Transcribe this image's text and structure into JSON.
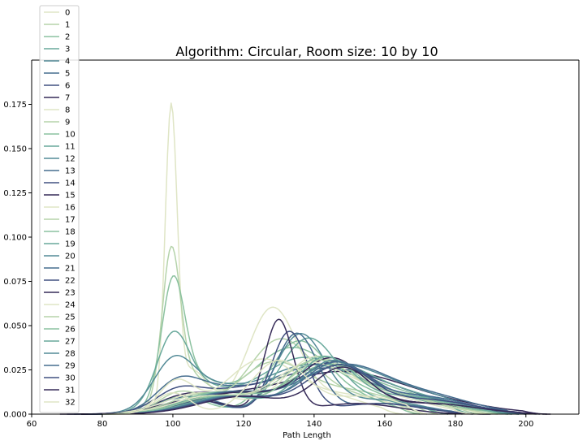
{
  "chart_data": {
    "type": "line",
    "title": "Algorithm: Circular, Room size: 10 by 10",
    "xlabel": "Path Length",
    "ylabel": "",
    "xlim": [
      60,
      215
    ],
    "ylim": [
      0,
      0.2
    ],
    "xticks": [
      "60",
      "80",
      "100",
      "120",
      "140",
      "160",
      "180",
      "200"
    ],
    "yticks": [
      "0.000",
      "0.025",
      "0.050",
      "0.075",
      "0.100",
      "0.125",
      "0.150",
      "0.175"
    ],
    "grid": false,
    "legend_position": "top-left",
    "palette": [
      "#dfe5c5",
      "#b5d3aa",
      "#8cc2a0",
      "#69a99c",
      "#548b97",
      "#466e8f",
      "#405080",
      "#372c59"
    ],
    "series": [
      {
        "name": "0",
        "color": "#dfe5c5",
        "peaks": [
          [
            99.5,
            0.162,
            1.7
          ],
          [
            105,
            0.025,
            5
          ],
          [
            128,
            0.058,
            7
          ],
          [
            145,
            0.01,
            10
          ]
        ],
        "xmin": 80,
        "xmax": 165
      },
      {
        "name": "1",
        "color": "#b5d3aa",
        "peaks": [
          [
            99.5,
            0.078,
            2.5
          ],
          [
            104,
            0.022,
            6
          ],
          [
            130,
            0.04,
            9
          ],
          [
            150,
            0.01,
            12
          ]
        ],
        "xmin": 78,
        "xmax": 172
      },
      {
        "name": "2",
        "color": "#8cc2a0",
        "peaks": [
          [
            100,
            0.062,
            3.2
          ],
          [
            105,
            0.02,
            7
          ],
          [
            132,
            0.032,
            11
          ],
          [
            150,
            0.012,
            14
          ]
        ],
        "xmin": 76,
        "xmax": 178
      },
      {
        "name": "3",
        "color": "#69a99c",
        "peaks": [
          [
            100,
            0.035,
            4.5
          ],
          [
            106,
            0.014,
            9
          ],
          [
            135,
            0.026,
            12
          ],
          [
            155,
            0.012,
            16
          ]
        ],
        "xmin": 75,
        "xmax": 185
      },
      {
        "name": "4",
        "color": "#548b97",
        "peaks": [
          [
            100,
            0.022,
            5.5
          ],
          [
            108,
            0.014,
            10
          ],
          [
            137,
            0.024,
            13
          ],
          [
            160,
            0.01,
            16
          ]
        ],
        "xmin": 74,
        "xmax": 190
      },
      {
        "name": "5",
        "color": "#466e8f",
        "peaks": [
          [
            101,
            0.012,
            6
          ],
          [
            110,
            0.012,
            10
          ],
          [
            140,
            0.024,
            14
          ],
          [
            162,
            0.01,
            16
          ]
        ],
        "xmin": 72,
        "xmax": 196
      },
      {
        "name": "6",
        "color": "#405080",
        "peaks": [
          [
            101,
            0.008,
            6
          ],
          [
            112,
            0.01,
            12
          ],
          [
            142,
            0.022,
            15
          ],
          [
            165,
            0.008,
            18
          ]
        ],
        "xmin": 70,
        "xmax": 200
      },
      {
        "name": "7",
        "color": "#372c59",
        "peaks": [
          [
            102,
            0.006,
            7
          ],
          [
            115,
            0.008,
            12
          ],
          [
            145,
            0.02,
            16
          ],
          [
            168,
            0.008,
            18
          ]
        ],
        "xmin": 68,
        "xmax": 205
      },
      {
        "name": "8",
        "color": "#dfe5c5",
        "peaks": [
          [
            101,
            0.018,
            5
          ],
          [
            125,
            0.03,
            10
          ],
          [
            150,
            0.01,
            12
          ]
        ],
        "xmin": 80,
        "xmax": 170
      },
      {
        "name": "9",
        "color": "#b5d3aa",
        "peaks": [
          [
            102,
            0.012,
            6
          ],
          [
            128,
            0.028,
            10
          ],
          [
            152,
            0.012,
            12
          ]
        ],
        "xmin": 80,
        "xmax": 175
      },
      {
        "name": "10",
        "color": "#8cc2a0",
        "peaks": [
          [
            103,
            0.01,
            7
          ],
          [
            135,
            0.038,
            8
          ],
          [
            150,
            0.01,
            10
          ]
        ],
        "xmin": 80,
        "xmax": 170
      },
      {
        "name": "11",
        "color": "#69a99c",
        "peaks": [
          [
            104,
            0.01,
            8
          ],
          [
            138,
            0.04,
            8
          ],
          [
            155,
            0.008,
            12
          ]
        ],
        "xmin": 78,
        "xmax": 178
      },
      {
        "name": "12",
        "color": "#548b97",
        "peaks": [
          [
            104,
            0.01,
            8
          ],
          [
            136,
            0.044,
            7
          ],
          [
            158,
            0.008,
            12
          ]
        ],
        "xmin": 78,
        "xmax": 182
      },
      {
        "name": "13",
        "color": "#466e8f",
        "peaks": [
          [
            105,
            0.01,
            9
          ],
          [
            135,
            0.045,
            6
          ],
          [
            160,
            0.006,
            12
          ]
        ],
        "xmin": 76,
        "xmax": 185
      },
      {
        "name": "14",
        "color": "#405080",
        "peaks": [
          [
            106,
            0.008,
            9
          ],
          [
            133,
            0.046,
            5
          ],
          [
            158,
            0.006,
            12
          ]
        ],
        "xmin": 75,
        "xmax": 188
      },
      {
        "name": "15",
        "color": "#372c59",
        "peaks": [
          [
            106,
            0.008,
            10
          ],
          [
            130,
            0.052,
            4
          ],
          [
            152,
            0.006,
            12
          ]
        ],
        "xmin": 74,
        "xmax": 190
      },
      {
        "name": "16",
        "color": "#dfe5c5",
        "peaks": [
          [
            108,
            0.012,
            10
          ],
          [
            140,
            0.03,
            9
          ],
          [
            160,
            0.01,
            12
          ]
        ],
        "xmin": 80,
        "xmax": 185
      },
      {
        "name": "17",
        "color": "#b5d3aa",
        "peaks": [
          [
            110,
            0.012,
            10
          ],
          [
            142,
            0.028,
            10
          ],
          [
            162,
            0.01,
            12
          ]
        ],
        "xmin": 80,
        "xmax": 188
      },
      {
        "name": "18",
        "color": "#8cc2a0",
        "peaks": [
          [
            112,
            0.012,
            10
          ],
          [
            143,
            0.026,
            11
          ],
          [
            165,
            0.01,
            12
          ]
        ],
        "xmin": 80,
        "xmax": 190
      },
      {
        "name": "19",
        "color": "#69a99c",
        "peaks": [
          [
            114,
            0.012,
            11
          ],
          [
            145,
            0.026,
            11
          ],
          [
            167,
            0.01,
            12
          ]
        ],
        "xmin": 78,
        "xmax": 195
      },
      {
        "name": "20",
        "color": "#548b97",
        "peaks": [
          [
            115,
            0.012,
            11
          ],
          [
            147,
            0.026,
            12
          ],
          [
            170,
            0.01,
            12
          ]
        ],
        "xmin": 78,
        "xmax": 198
      },
      {
        "name": "21",
        "color": "#466e8f",
        "peaks": [
          [
            116,
            0.012,
            12
          ],
          [
            148,
            0.026,
            12
          ],
          [
            172,
            0.01,
            13
          ]
        ],
        "xmin": 76,
        "xmax": 200
      },
      {
        "name": "22",
        "color": "#405080",
        "peaks": [
          [
            117,
            0.012,
            12
          ],
          [
            146,
            0.028,
            10
          ],
          [
            172,
            0.008,
            13
          ]
        ],
        "xmin": 75,
        "xmax": 204
      },
      {
        "name": "23",
        "color": "#372c59",
        "peaks": [
          [
            118,
            0.012,
            12
          ],
          [
            145,
            0.03,
            9
          ],
          [
            170,
            0.006,
            13
          ]
        ],
        "xmin": 74,
        "xmax": 207
      },
      {
        "name": "24",
        "color": "#dfe5c5",
        "peaks": [
          [
            110,
            0.01,
            10
          ],
          [
            138,
            0.026,
            10
          ],
          [
            160,
            0.012,
            13
          ]
        ],
        "xmin": 80,
        "xmax": 190
      },
      {
        "name": "25",
        "color": "#b5d3aa",
        "peaks": [
          [
            112,
            0.01,
            10
          ],
          [
            140,
            0.028,
            10
          ],
          [
            162,
            0.01,
            13
          ]
        ],
        "xmin": 80,
        "xmax": 192
      },
      {
        "name": "26",
        "color": "#8cc2a0",
        "peaks": [
          [
            113,
            0.01,
            11
          ],
          [
            142,
            0.03,
            9
          ],
          [
            164,
            0.01,
            13
          ]
        ],
        "xmin": 78,
        "xmax": 195
      },
      {
        "name": "27",
        "color": "#69a99c",
        "peaks": [
          [
            115,
            0.01,
            11
          ],
          [
            143,
            0.03,
            8
          ],
          [
            166,
            0.01,
            13
          ]
        ],
        "xmin": 78,
        "xmax": 196
      },
      {
        "name": "28",
        "color": "#548b97",
        "peaks": [
          [
            116,
            0.01,
            11
          ],
          [
            145,
            0.028,
            9
          ],
          [
            168,
            0.01,
            13
          ]
        ],
        "xmin": 76,
        "xmax": 198
      },
      {
        "name": "29",
        "color": "#466e8f",
        "peaks": [
          [
            118,
            0.01,
            12
          ],
          [
            146,
            0.027,
            9
          ],
          [
            170,
            0.01,
            13
          ]
        ],
        "xmin": 76,
        "xmax": 200
      },
      {
        "name": "30",
        "color": "#405080",
        "peaks": [
          [
            119,
            0.01,
            12
          ],
          [
            147,
            0.026,
            9
          ],
          [
            172,
            0.008,
            13
          ]
        ],
        "xmin": 75,
        "xmax": 203
      },
      {
        "name": "31",
        "color": "#372c59",
        "peaks": [
          [
            120,
            0.01,
            12
          ],
          [
            148,
            0.025,
            8
          ],
          [
            173,
            0.006,
            13
          ]
        ],
        "xmin": 74,
        "xmax": 206
      },
      {
        "name": "32",
        "color": "#dfe5c5",
        "peaks": [
          [
            100,
            0.012,
            5
          ],
          [
            130,
            0.03,
            8
          ],
          [
            155,
            0.01,
            10
          ]
        ],
        "xmin": 80,
        "xmax": 172
      }
    ]
  }
}
